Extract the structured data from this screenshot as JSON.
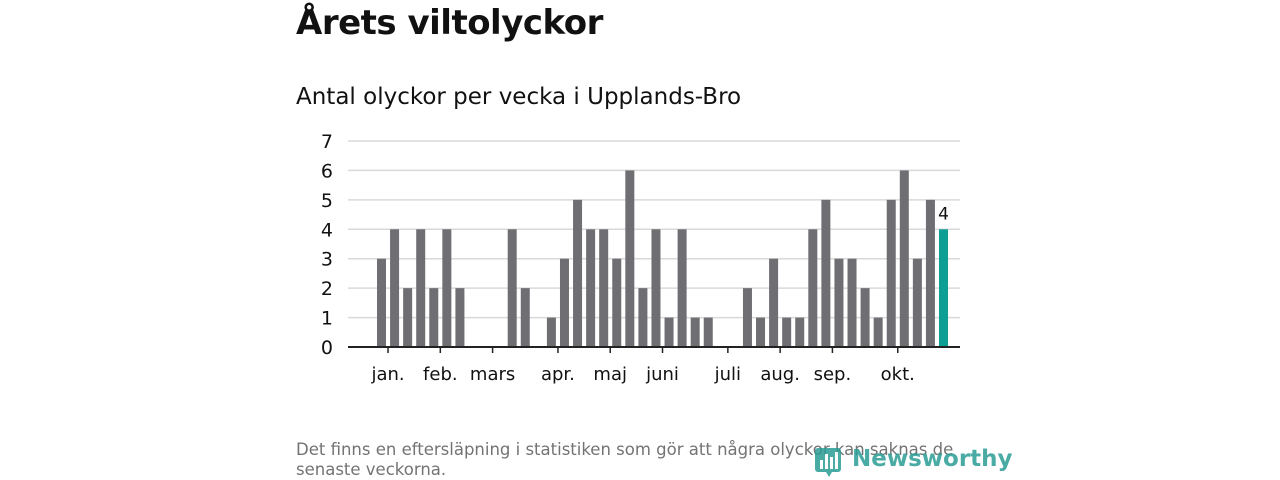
{
  "header": {
    "title": "Årets viltolyckor"
  },
  "chart_data": {
    "type": "bar",
    "title": "Antal olyckor per vecka i Upplands-Bro",
    "xlabel": "",
    "ylabel": "",
    "ylim": [
      0,
      7
    ],
    "yticks": [
      0,
      1,
      2,
      3,
      4,
      5,
      6,
      7
    ],
    "grid": true,
    "weeks": [
      1,
      2,
      3,
      4,
      5,
      6,
      7,
      8,
      9,
      10,
      11,
      12,
      13,
      14,
      15,
      16,
      17,
      18,
      19,
      20,
      21,
      22,
      23,
      24,
      25,
      26,
      27,
      28,
      29,
      30,
      31,
      32,
      33,
      34,
      35,
      36,
      37,
      38,
      39,
      40,
      41,
      42,
      43
    ],
    "values": [
      3,
      4,
      2,
      4,
      2,
      4,
      2,
      0,
      0,
      0,
      4,
      2,
      0,
      1,
      3,
      5,
      4,
      4,
      3,
      6,
      2,
      4,
      1,
      4,
      1,
      1,
      0,
      0,
      2,
      1,
      3,
      1,
      1,
      4,
      5,
      3,
      3,
      2,
      1,
      5,
      6,
      3,
      5
    ],
    "current": {
      "week": 44,
      "value": 4,
      "label": "4"
    },
    "month_labels": [
      {
        "label": "jan.",
        "week": 1.5
      },
      {
        "label": "feb.",
        "week": 5.5
      },
      {
        "label": "mars",
        "week": 9.5
      },
      {
        "label": "apr.",
        "week": 14.5
      },
      {
        "label": "maj",
        "week": 18.5
      },
      {
        "label": "juni",
        "week": 22.5
      },
      {
        "label": "juli",
        "week": 27.5
      },
      {
        "label": "aug.",
        "week": 31.5
      },
      {
        "label": "sep.",
        "week": 35.5
      },
      {
        "label": "okt.",
        "week": 40.5
      }
    ],
    "colors": {
      "bar": "#6e6e73",
      "current": "#0d9e94",
      "grid": "#d9d9d9",
      "axis": "#222222"
    }
  },
  "footer": {
    "note": "Det finns en eftersläpning i statistiken som gör att några olyckor kan saknas de senaste veckorna.",
    "brand": "Newsworthy"
  }
}
